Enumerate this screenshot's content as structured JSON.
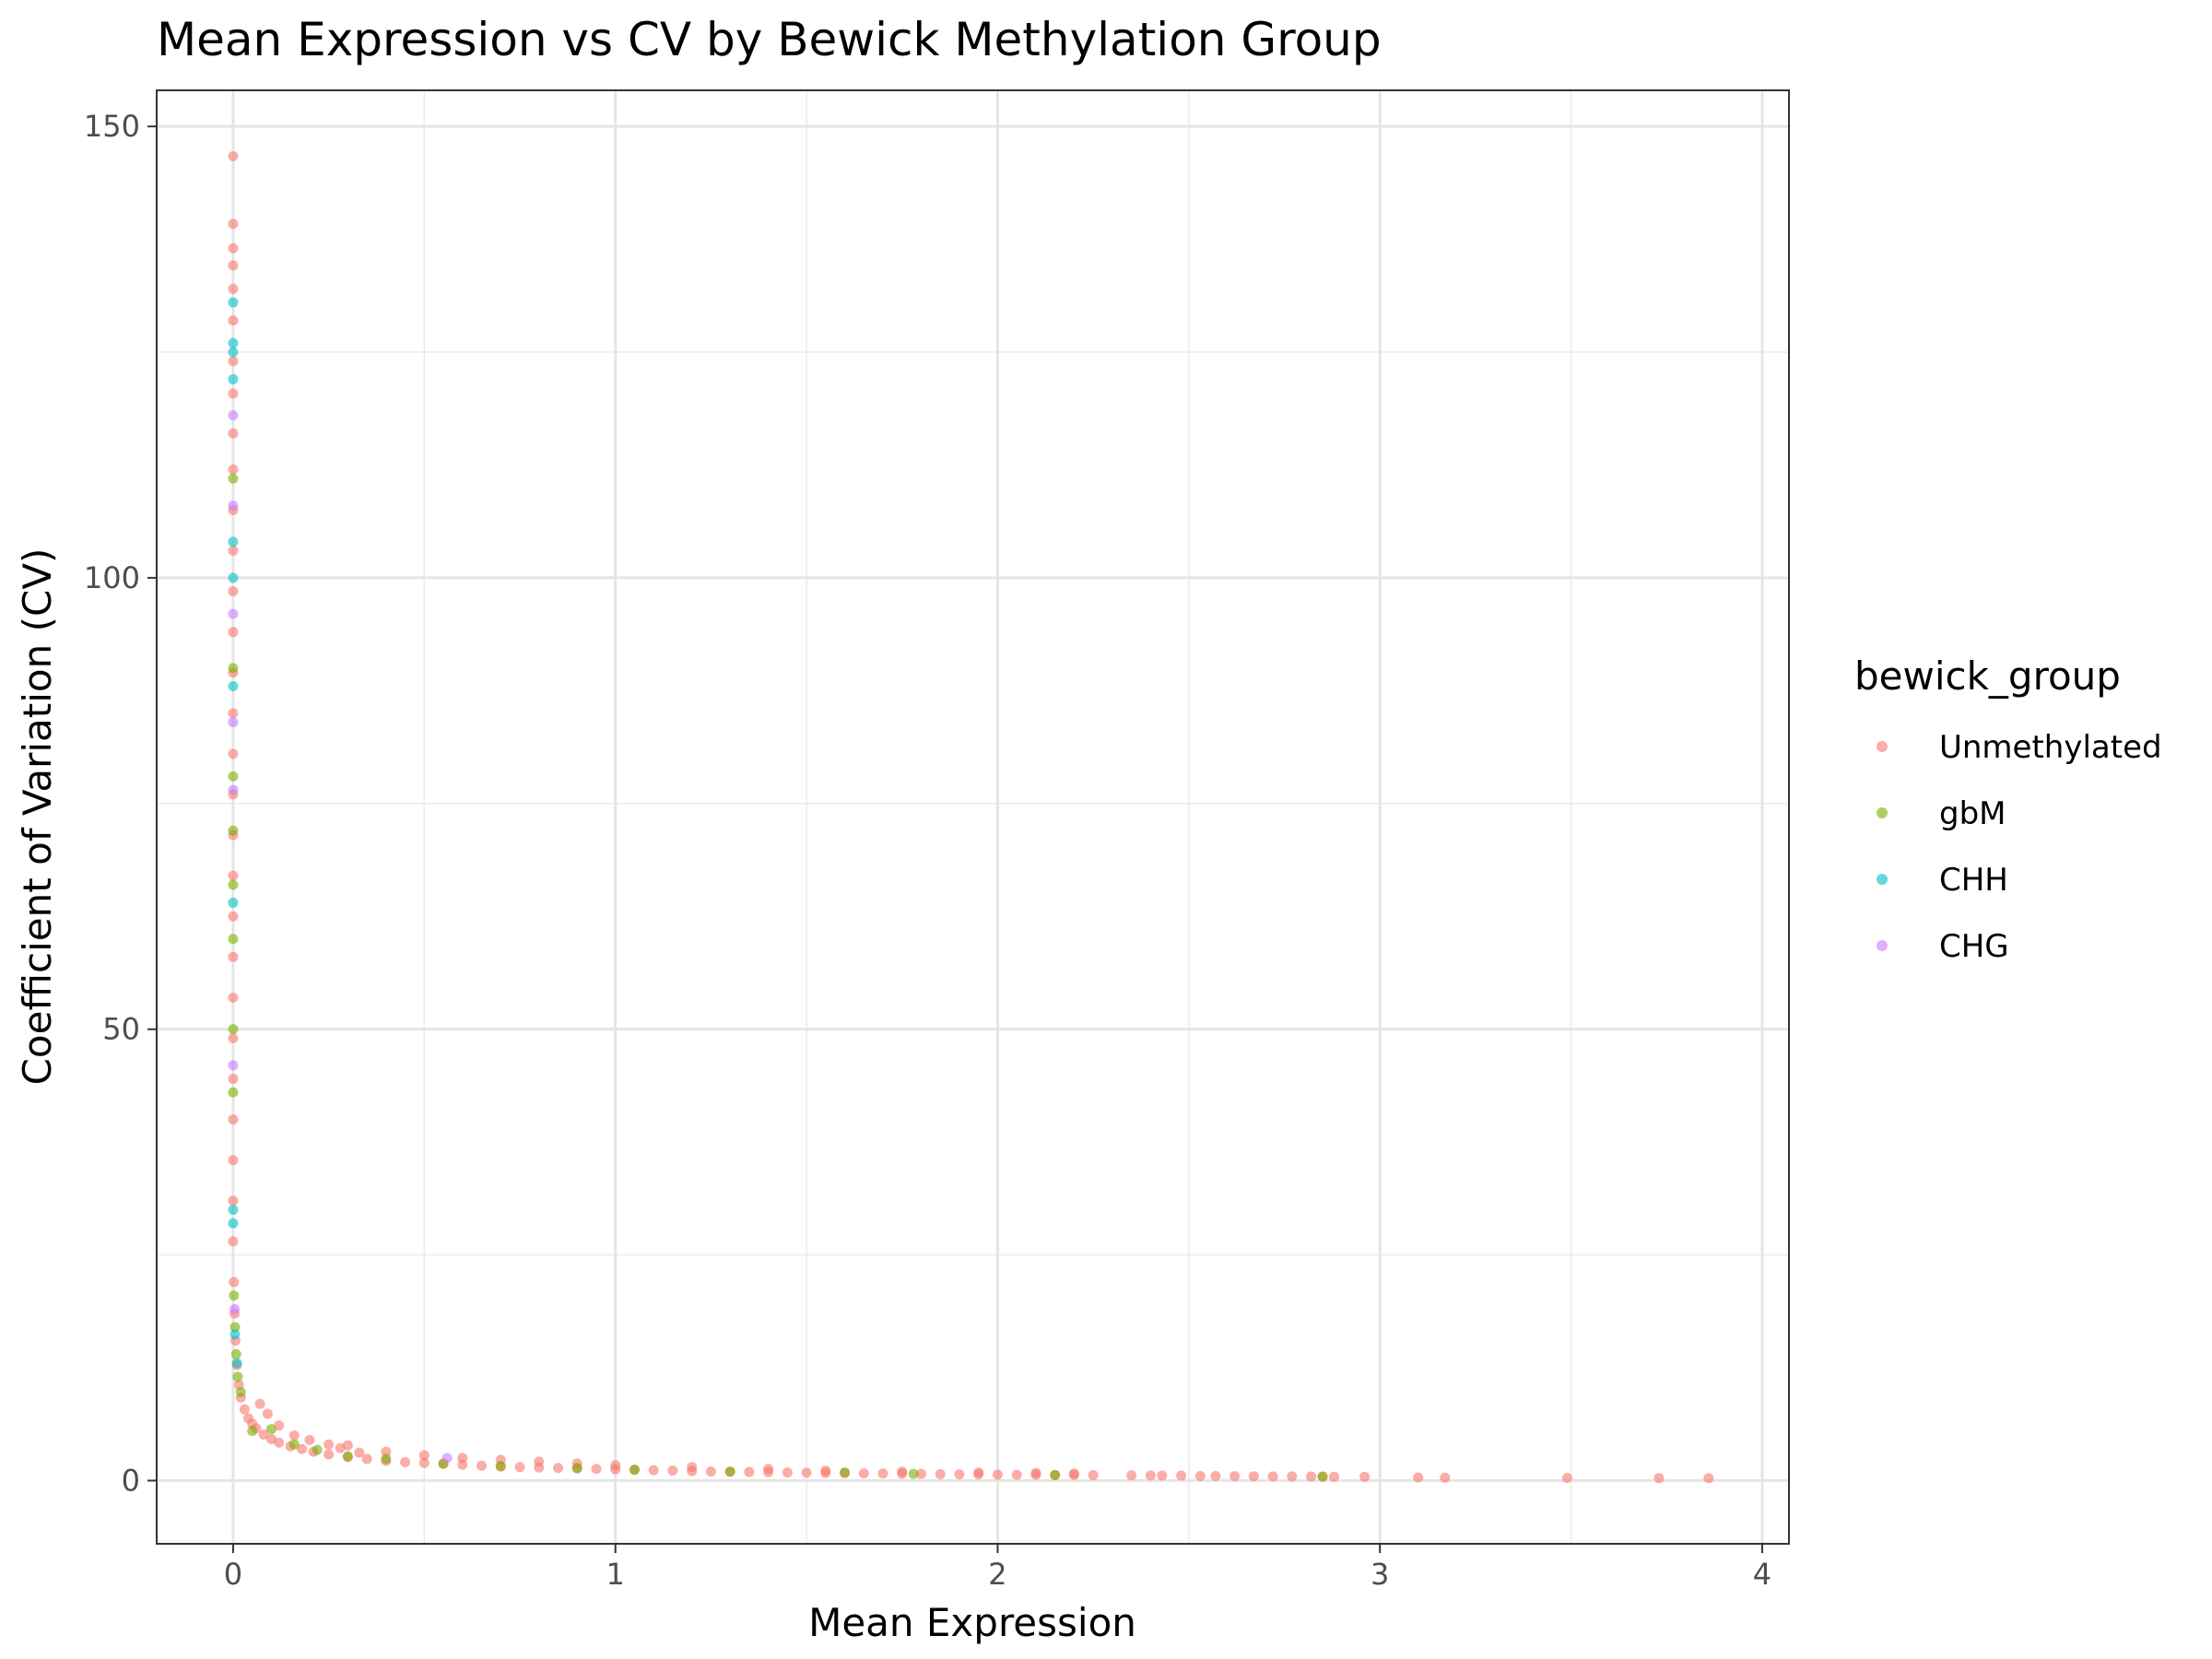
{
  "chart_data": {
    "type": "scatter",
    "title": "Mean Expression vs CV by Bewick Methylation Group",
    "xlabel": "Mean Expression",
    "ylabel": "Coefficient of Variation (CV)",
    "xlim": [
      -0.2,
      4.07
    ],
    "ylim": [
      -7,
      154
    ],
    "x_ticks": [
      0,
      1,
      2,
      3,
      4
    ],
    "y_ticks": [
      0,
      50,
      100,
      150
    ],
    "grid": true,
    "legend": {
      "title": "bewick_group",
      "position": "right",
      "entries": [
        "Unmethylated",
        "gbM",
        "CHH",
        "CHG"
      ]
    },
    "series": [
      {
        "name": "Unmethylated",
        "color": "#F8766D",
        "points": [
          [
            0.0,
            146.7
          ],
          [
            0.0,
            139.2
          ],
          [
            0.0,
            136.5
          ],
          [
            0.0,
            134.6
          ],
          [
            0.0,
            132.0
          ],
          [
            0.0,
            128.5
          ],
          [
            0.0,
            124.0
          ],
          [
            0.0,
            120.4
          ],
          [
            0.0,
            116.0
          ],
          [
            0.0,
            112.0
          ],
          [
            0.0,
            107.5
          ],
          [
            0.0,
            103.0
          ],
          [
            0.0,
            98.5
          ],
          [
            0.0,
            94.0
          ],
          [
            0.0,
            89.5
          ],
          [
            0.0,
            85.0
          ],
          [
            0.0,
            80.5
          ],
          [
            0.0,
            76.0
          ],
          [
            0.0,
            71.5
          ],
          [
            0.0,
            67.0
          ],
          [
            0.0,
            62.5
          ],
          [
            0.0,
            58.0
          ],
          [
            0.0,
            53.5
          ],
          [
            0.0,
            49.0
          ],
          [
            0.0,
            44.5
          ],
          [
            0.0,
            40.0
          ],
          [
            0.0,
            35.5
          ],
          [
            0.0,
            31.0
          ],
          [
            0.0,
            26.5
          ],
          [
            0.002,
            22.0
          ],
          [
            0.004,
            18.5
          ],
          [
            0.006,
            15.5
          ],
          [
            0.01,
            12.8
          ],
          [
            0.015,
            10.6
          ],
          [
            0.02,
            9.2
          ],
          [
            0.03,
            7.9
          ],
          [
            0.04,
            6.9
          ],
          [
            0.05,
            6.3
          ],
          [
            0.06,
            5.8
          ],
          [
            0.08,
            5.1
          ],
          [
            0.1,
            4.6
          ],
          [
            0.12,
            4.2
          ],
          [
            0.15,
            3.8
          ],
          [
            0.18,
            3.5
          ],
          [
            0.21,
            3.2
          ],
          [
            0.25,
            2.9
          ],
          [
            0.3,
            2.6
          ],
          [
            0.35,
            2.4
          ],
          [
            0.4,
            2.2
          ],
          [
            0.45,
            2.05
          ],
          [
            0.5,
            1.95
          ],
          [
            0.55,
            1.85
          ],
          [
            0.6,
            1.75
          ],
          [
            0.65,
            1.65
          ],
          [
            0.7,
            1.55
          ],
          [
            0.75,
            1.5
          ],
          [
            0.8,
            1.45
          ],
          [
            0.85,
            1.4
          ],
          [
            0.9,
            1.35
          ],
          [
            0.95,
            1.3
          ],
          [
            1.0,
            1.25
          ],
          [
            1.05,
            1.2
          ],
          [
            1.1,
            1.15
          ],
          [
            1.15,
            1.1
          ],
          [
            1.2,
            1.05
          ],
          [
            1.25,
            1.0
          ],
          [
            1.3,
            0.98
          ],
          [
            1.35,
            0.95
          ],
          [
            1.4,
            0.92
          ],
          [
            1.45,
            0.9
          ],
          [
            1.5,
            0.88
          ],
          [
            1.55,
            0.85
          ],
          [
            1.6,
            0.82
          ],
          [
            1.65,
            0.8
          ],
          [
            1.7,
            0.78
          ],
          [
            1.75,
            0.76
          ],
          [
            1.8,
            0.74
          ],
          [
            1.85,
            0.72
          ],
          [
            1.9,
            0.7
          ],
          [
            1.95,
            0.68
          ],
          [
            2.0,
            0.66
          ],
          [
            2.05,
            0.65
          ],
          [
            2.1,
            0.64
          ],
          [
            2.15,
            0.63
          ],
          [
            2.2,
            0.62
          ],
          [
            2.25,
            0.6
          ],
          [
            2.35,
            0.58
          ],
          [
            2.4,
            0.57
          ],
          [
            2.43,
            0.56
          ],
          [
            2.48,
            0.55
          ],
          [
            2.53,
            0.5
          ],
          [
            2.57,
            0.5
          ],
          [
            2.62,
            0.49
          ],
          [
            2.67,
            0.48
          ],
          [
            2.72,
            0.47
          ],
          [
            2.77,
            0.46
          ],
          [
            2.82,
            0.45
          ],
          [
            2.85,
            0.44
          ],
          [
            2.88,
            0.43
          ],
          [
            2.96,
            0.42
          ],
          [
            3.1,
            0.35
          ],
          [
            3.17,
            0.33
          ],
          [
            3.49,
            0.3
          ],
          [
            3.73,
            0.28
          ],
          [
            3.86,
            0.27
          ],
          [
            0.3,
            3.9
          ],
          [
            0.4,
            3.2
          ],
          [
            0.5,
            2.8
          ],
          [
            0.6,
            2.5
          ],
          [
            0.7,
            2.3
          ],
          [
            0.8,
            2.1
          ],
          [
            0.9,
            1.9
          ],
          [
            1.0,
            1.7
          ],
          [
            1.2,
            1.5
          ],
          [
            1.4,
            1.3
          ],
          [
            0.07,
            8.5
          ],
          [
            0.09,
            7.4
          ],
          [
            0.12,
            6.1
          ],
          [
            0.16,
            5.0
          ],
          [
            0.2,
            4.5
          ],
          [
            0.25,
            4.0
          ],
          [
            0.28,
            3.6
          ],
          [
            0.33,
            3.1
          ],
          [
            1.55,
            1.1
          ],
          [
            1.75,
            1.0
          ],
          [
            1.95,
            0.9
          ],
          [
            2.1,
            0.85
          ],
          [
            2.2,
            0.8
          ]
        ]
      },
      {
        "name": "gbM",
        "color": "#7CAE00",
        "points": [
          [
            0.0,
            111.0
          ],
          [
            0.0,
            90.0
          ],
          [
            0.0,
            78.0
          ],
          [
            0.0,
            72.0
          ],
          [
            0.0,
            66.0
          ],
          [
            0.0,
            60.0
          ],
          [
            0.0,
            50.0
          ],
          [
            0.0,
            43.0
          ],
          [
            0.002,
            20.5
          ],
          [
            0.005,
            17.0
          ],
          [
            0.008,
            14.0
          ],
          [
            0.012,
            11.5
          ],
          [
            0.02,
            9.8
          ],
          [
            0.05,
            5.5
          ],
          [
            0.1,
            5.7
          ],
          [
            0.16,
            4.0
          ],
          [
            0.22,
            3.4
          ],
          [
            0.3,
            2.7
          ],
          [
            0.4,
            2.4
          ],
          [
            0.55,
            1.9
          ],
          [
            0.7,
            1.6
          ],
          [
            0.9,
            1.4
          ],
          [
            1.05,
            1.2
          ],
          [
            1.3,
            1.0
          ],
          [
            1.6,
            0.9
          ],
          [
            1.78,
            0.75
          ],
          [
            2.15,
            0.6
          ],
          [
            2.85,
            0.45
          ]
        ]
      },
      {
        "name": "CHH",
        "color": "#00BFC4",
        "points": [
          [
            0.0,
            130.5
          ],
          [
            0.0,
            126.0
          ],
          [
            0.0,
            125.0
          ],
          [
            0.0,
            122.0
          ],
          [
            0.0,
            104.0
          ],
          [
            0.0,
            100.0
          ],
          [
            0.0,
            88.0
          ],
          [
            0.0,
            64.0
          ],
          [
            0.0,
            30.0
          ],
          [
            0.0,
            28.5
          ],
          [
            0.005,
            16.2
          ],
          [
            0.01,
            13.0
          ]
        ]
      },
      {
        "name": "CHG",
        "color": "#C77CFF",
        "points": [
          [
            0.0,
            118.0
          ],
          [
            0.0,
            108.0
          ],
          [
            0.0,
            96.0
          ],
          [
            0.0,
            84.0
          ],
          [
            0.0,
            76.5
          ],
          [
            0.0,
            46.0
          ],
          [
            0.004,
            19.0
          ],
          [
            0.56,
            2.5
          ]
        ]
      }
    ]
  }
}
